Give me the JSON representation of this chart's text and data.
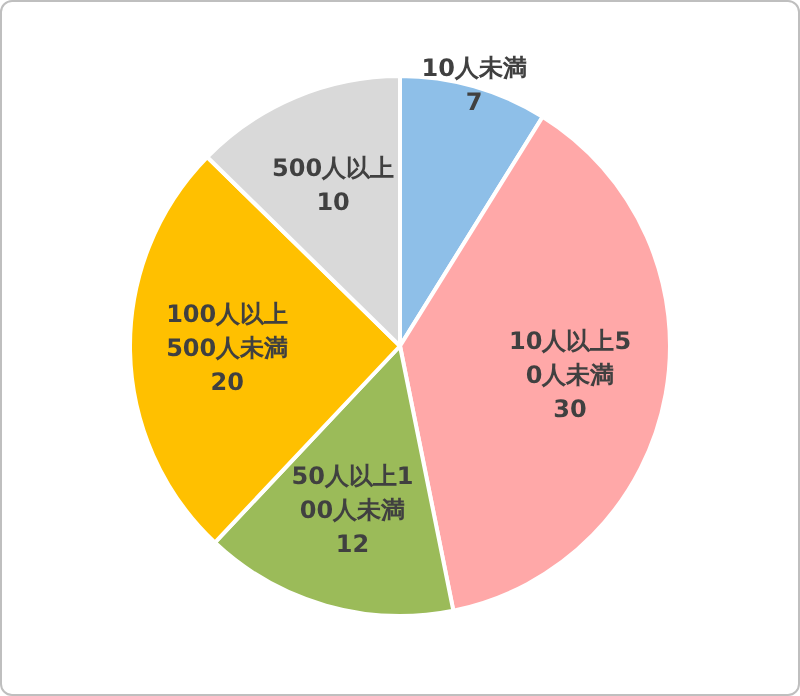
{
  "chart_data": {
    "type": "pie",
    "categories": [
      "10人未満",
      "10人以上50人未満",
      "50人以上100人未満",
      "100人以上500人未満",
      "500人以上"
    ],
    "values": [
      7,
      30,
      12,
      20,
      10
    ],
    "colors": [
      "#8ebfe8",
      "#ffa8a8",
      "#9bbb59",
      "#ffc000",
      "#d9d9d9"
    ],
    "data_labels": true,
    "legend": false
  }
}
